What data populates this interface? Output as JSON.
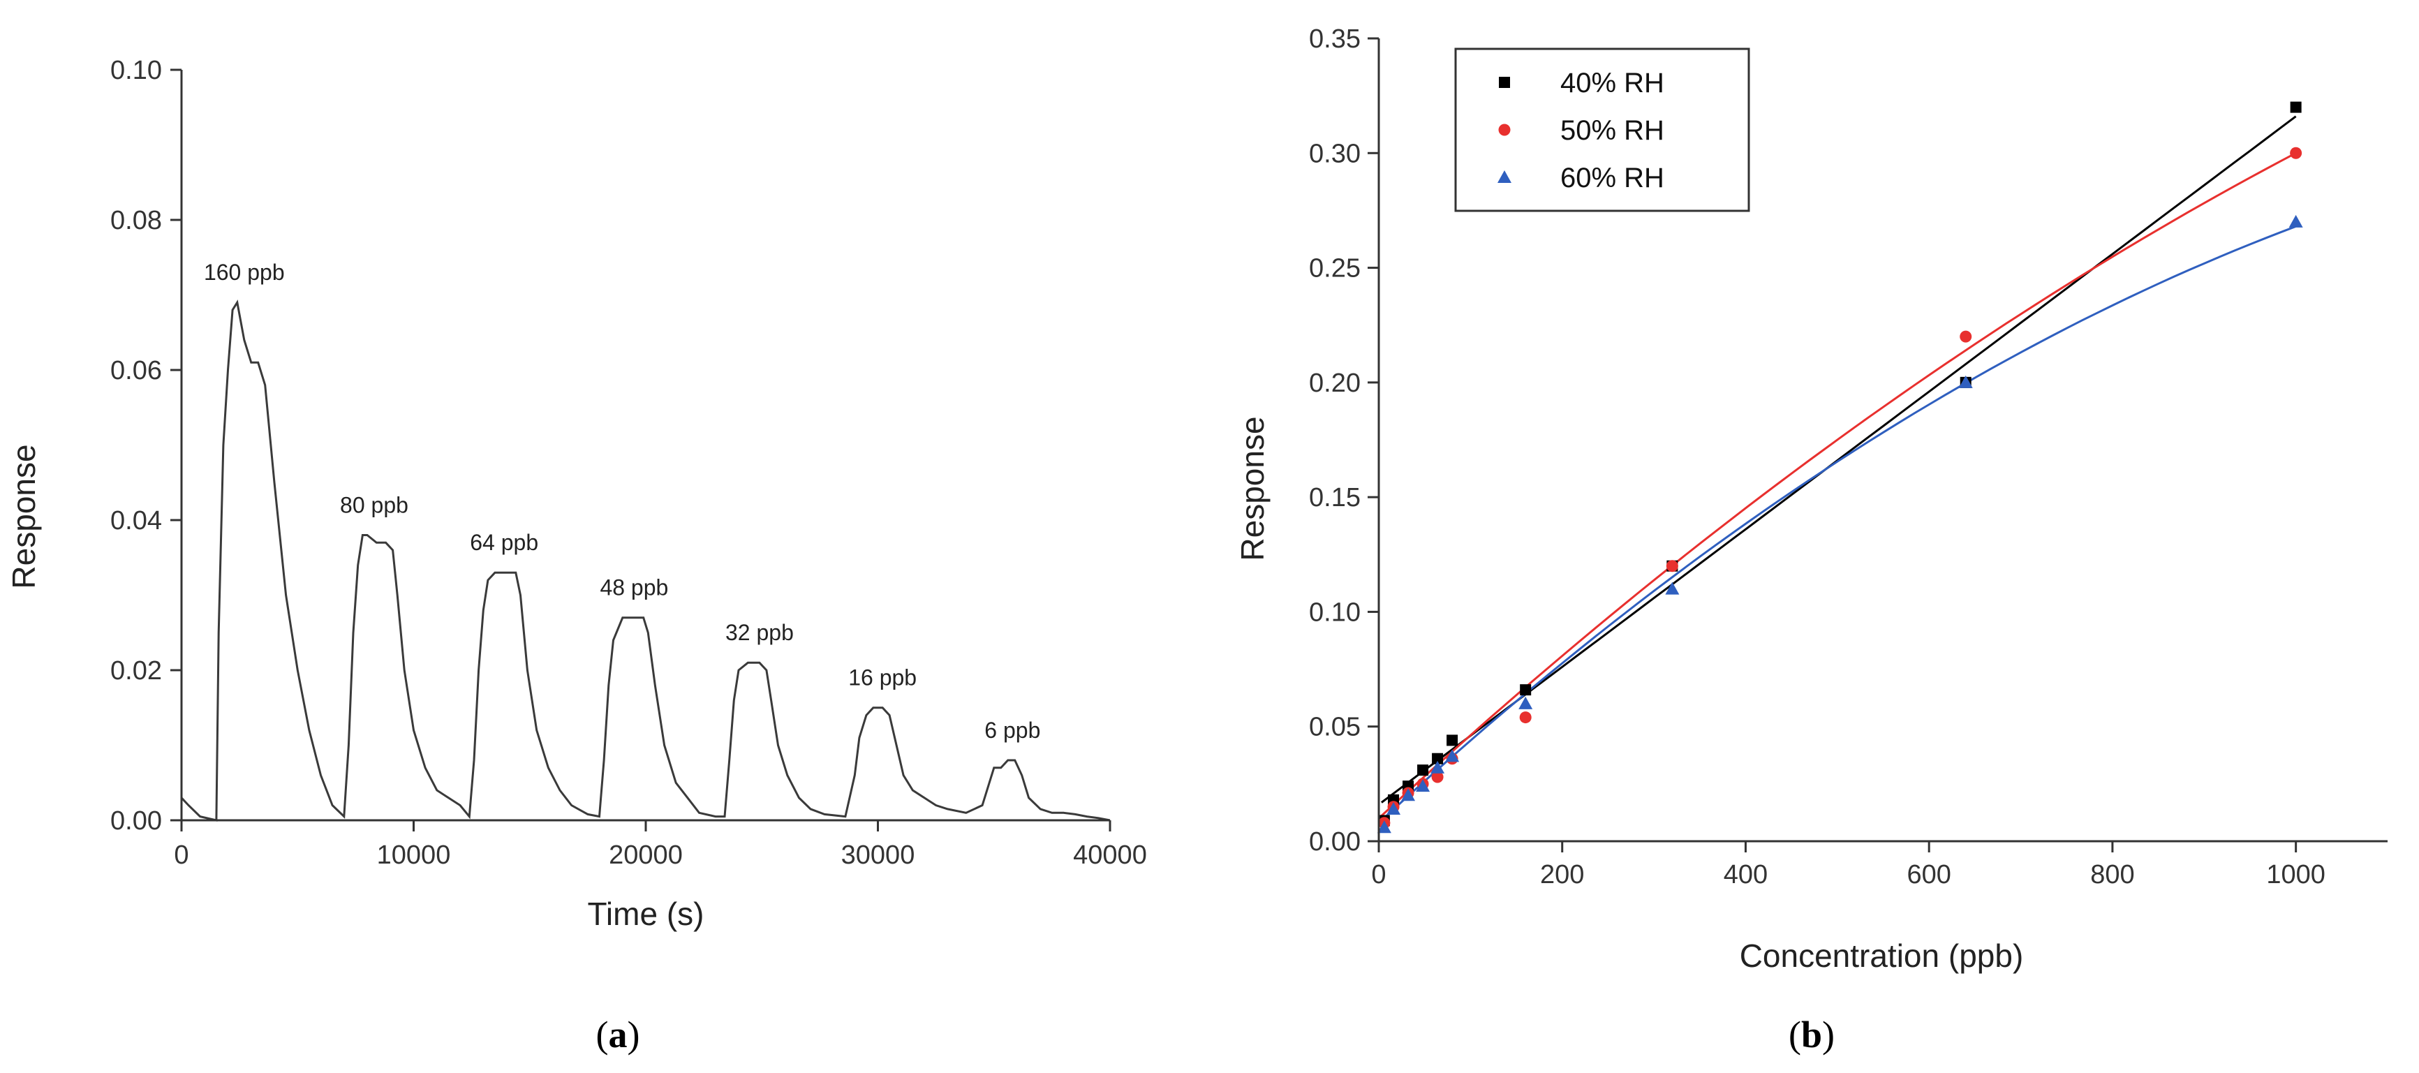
{
  "chart_data": [
    {
      "type": "line",
      "panel": "a",
      "xlabel": "Time (s)",
      "ylabel": "Response",
      "xlim": [
        0,
        40000
      ],
      "ylim": [
        0,
        0.1
      ],
      "xticks": [
        0,
        10000,
        20000,
        30000,
        40000
      ],
      "yticks": [
        0.0,
        0.02,
        0.04,
        0.06,
        0.08,
        0.1
      ],
      "series": [
        {
          "name": "response",
          "x": [
            0,
            300,
            800,
            1500,
            1600,
            1800,
            2000,
            2200,
            2400,
            2700,
            3000,
            3300,
            3600,
            4000,
            4500,
            5000,
            5500,
            6000,
            6500,
            7000,
            7200,
            7400,
            7600,
            7800,
            8000,
            8400,
            8800,
            9100,
            9300,
            9600,
            10000,
            10500,
            11000,
            11500,
            12000,
            12400,
            12600,
            12800,
            13000,
            13200,
            13500,
            14000,
            14400,
            14600,
            14900,
            15300,
            15800,
            16300,
            16800,
            17500,
            18000,
            18200,
            18400,
            18600,
            19000,
            19500,
            19900,
            20100,
            20400,
            20800,
            21300,
            21800,
            22300,
            23000,
            23400,
            23600,
            23800,
            24000,
            24400,
            24900,
            25200,
            25400,
            25700,
            26100,
            26600,
            27100,
            27700,
            28600,
            29000,
            29200,
            29500,
            29800,
            30200,
            30500,
            30800,
            31100,
            31500,
            32000,
            32500,
            33000,
            33800,
            34500,
            34800,
            35000,
            35300,
            35600,
            35900,
            36200,
            36500,
            37000,
            37500,
            38000,
            38500,
            39000,
            39500,
            40000
          ],
          "values": [
            0.003,
            0.002,
            0.0005,
            0.0,
            0.025,
            0.05,
            0.06,
            0.068,
            0.069,
            0.064,
            0.061,
            0.061,
            0.058,
            0.045,
            0.03,
            0.02,
            0.012,
            0.006,
            0.002,
            0.0005,
            0.01,
            0.025,
            0.034,
            0.038,
            0.038,
            0.037,
            0.037,
            0.036,
            0.03,
            0.02,
            0.012,
            0.007,
            0.004,
            0.003,
            0.002,
            0.0005,
            0.008,
            0.02,
            0.028,
            0.032,
            0.033,
            0.033,
            0.033,
            0.03,
            0.02,
            0.012,
            0.007,
            0.004,
            0.002,
            0.0008,
            0.0005,
            0.008,
            0.018,
            0.024,
            0.027,
            0.027,
            0.027,
            0.025,
            0.018,
            0.01,
            0.005,
            0.003,
            0.001,
            0.0005,
            0.0005,
            0.008,
            0.016,
            0.02,
            0.021,
            0.021,
            0.02,
            0.016,
            0.01,
            0.006,
            0.003,
            0.0015,
            0.0008,
            0.0005,
            0.006,
            0.011,
            0.014,
            0.015,
            0.015,
            0.014,
            0.01,
            0.006,
            0.004,
            0.003,
            0.002,
            0.0015,
            0.001,
            0.002,
            0.005,
            0.007,
            0.007,
            0.008,
            0.008,
            0.006,
            0.003,
            0.0015,
            0.001,
            0.001,
            0.0008,
            0.0005,
            0.0003,
            0.0
          ]
        }
      ],
      "annotations": [
        {
          "text": "160 ppb",
          "x": 2700,
          "y": 0.072
        },
        {
          "text": "80 ppb",
          "x": 8300,
          "y": 0.041
        },
        {
          "text": "64 ppb",
          "x": 13900,
          "y": 0.036
        },
        {
          "text": "48 ppb",
          "x": 19500,
          "y": 0.03
        },
        {
          "text": "32 ppb",
          "x": 24900,
          "y": 0.024
        },
        {
          "text": "16 ppb",
          "x": 30200,
          "y": 0.018
        },
        {
          "text": "6 ppb",
          "x": 35800,
          "y": 0.011
        }
      ],
      "panel_label": "a"
    },
    {
      "type": "scatter",
      "panel": "b",
      "xlabel": "Concentration (ppb)",
      "ylabel": "Response",
      "xlim": [
        0,
        1100
      ],
      "ylim": [
        0,
        0.35
      ],
      "xticks": [
        0,
        200,
        400,
        600,
        800,
        1000
      ],
      "yticks": [
        0.0,
        0.05,
        0.1,
        0.15,
        0.2,
        0.25,
        0.3,
        0.35
      ],
      "legend_position": "top-left",
      "series": [
        {
          "name": "40% RH",
          "color": "#000000",
          "marker": "square",
          "x": [
            6,
            16,
            32,
            48,
            64,
            80,
            160,
            320,
            640,
            1000
          ],
          "values": [
            0.009,
            0.018,
            0.024,
            0.031,
            0.036,
            0.044,
            0.066,
            0.12,
            0.2,
            0.32
          ],
          "fit": {
            "kind": "linear",
            "slope": 0.0003,
            "intercept": 0.016
          }
        },
        {
          "name": "50% RH",
          "color": "#e8302e",
          "marker": "circle",
          "x": [
            6,
            16,
            32,
            48,
            64,
            80,
            160,
            320,
            640,
            1000
          ],
          "values": [
            0.008,
            0.015,
            0.021,
            0.025,
            0.028,
            0.036,
            0.054,
            0.12,
            0.22,
            0.3
          ],
          "fit": {
            "kind": "quadratic",
            "a": -8e-08,
            "b": 0.00037,
            "c": 0.01
          }
        },
        {
          "name": "60% RH",
          "color": "#2f5fbf",
          "marker": "triangle",
          "x": [
            6,
            16,
            32,
            48,
            64,
            80,
            160,
            320,
            640,
            1000
          ],
          "values": [
            0.006,
            0.014,
            0.02,
            0.024,
            0.032,
            0.037,
            0.06,
            0.11,
            0.2,
            0.27
          ],
          "fit": {
            "kind": "quadratic",
            "a": -1.1e-07,
            "b": 0.00037,
            "c": 0.008
          }
        }
      ],
      "panel_label": "b"
    }
  ]
}
